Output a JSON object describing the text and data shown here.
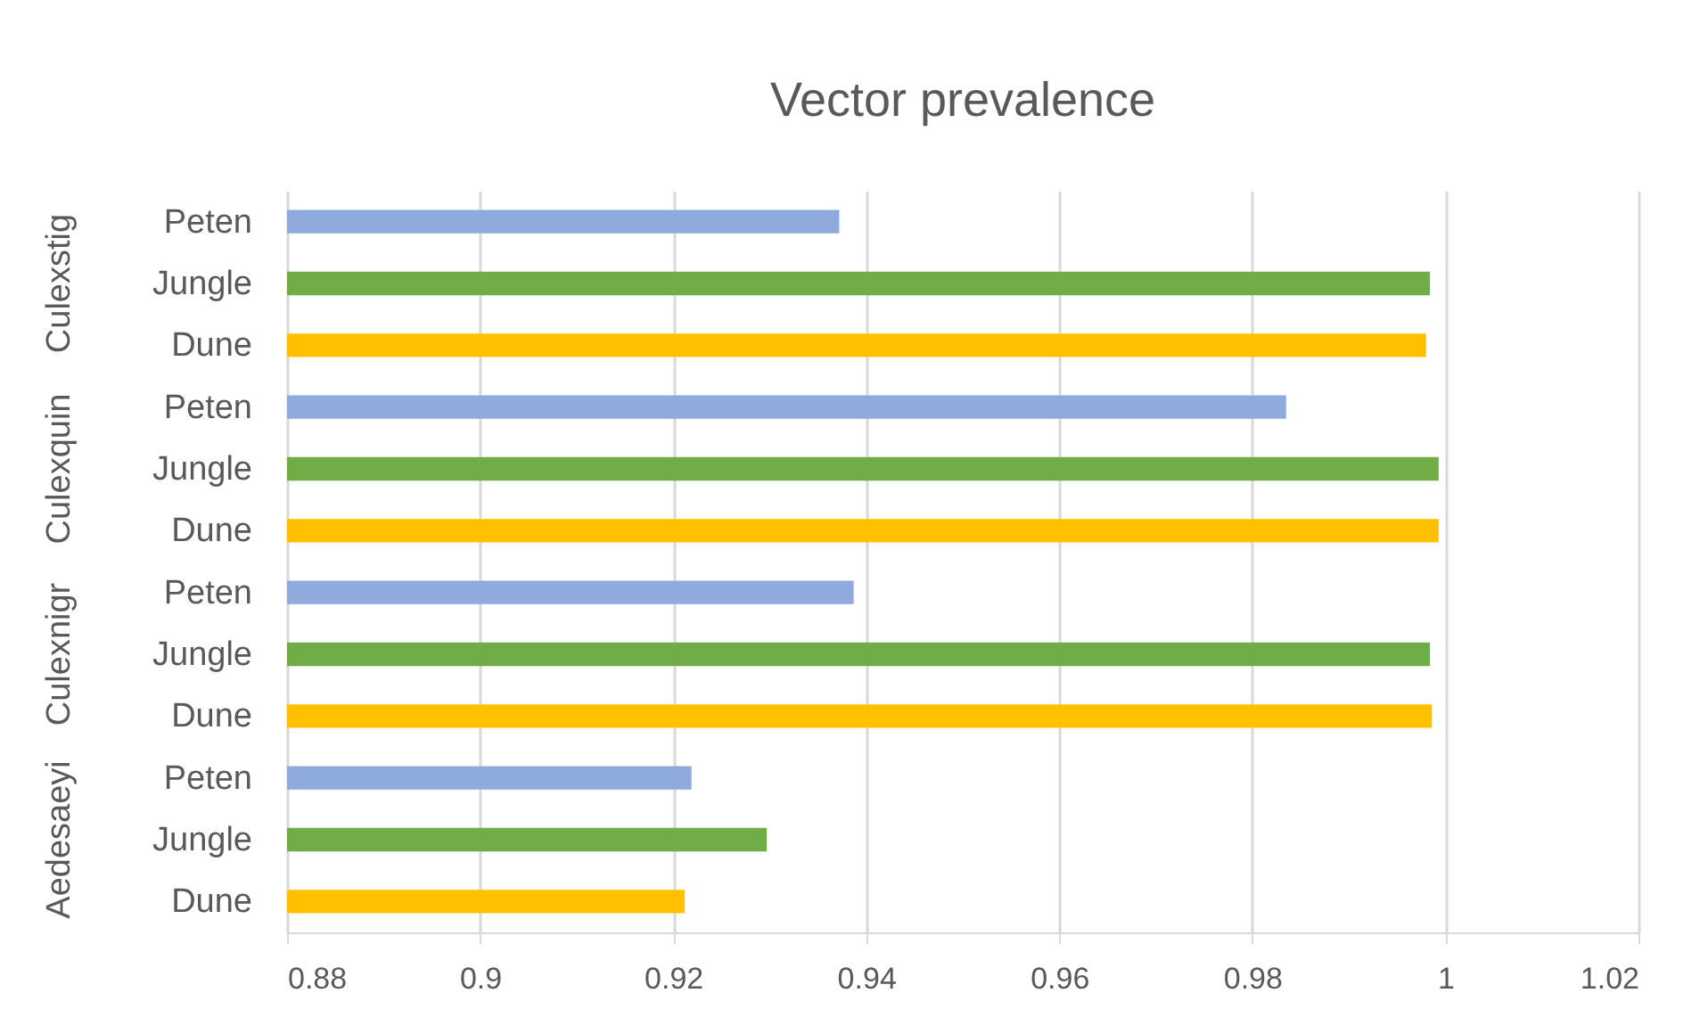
{
  "chart_data": {
    "type": "bar",
    "orientation": "horizontal",
    "title": "Vector prevalence",
    "categories": [
      "Peten",
      "Jungle",
      "Dune",
      "Peten",
      "Jungle",
      "Dune",
      "Peten",
      "Jungle",
      "Dune",
      "Peten",
      "Jungle",
      "Dune"
    ],
    "values": [
      0.9372,
      0.9984,
      0.998,
      0.9835,
      0.9993,
      0.9993,
      0.9387,
      0.9984,
      0.9986,
      0.9219,
      0.9297,
      0.9212
    ],
    "colors": [
      "#8faadc",
      "#70ad47",
      "#ffc000",
      "#8faadc",
      "#70ad47",
      "#ffc000",
      "#8faadc",
      "#70ad47",
      "#ffc000",
      "#8faadc",
      "#70ad47",
      "#ffc000"
    ],
    "annotations": [
      "Culexstig",
      "Culexquin",
      "Culexnigr",
      "Aedesaeyi"
    ],
    "xlim": [
      0.88,
      1.02
    ],
    "xticks": [
      0.88,
      0.9,
      0.92,
      0.94,
      0.96,
      0.98,
      1,
      1.02
    ],
    "grid": "x"
  }
}
